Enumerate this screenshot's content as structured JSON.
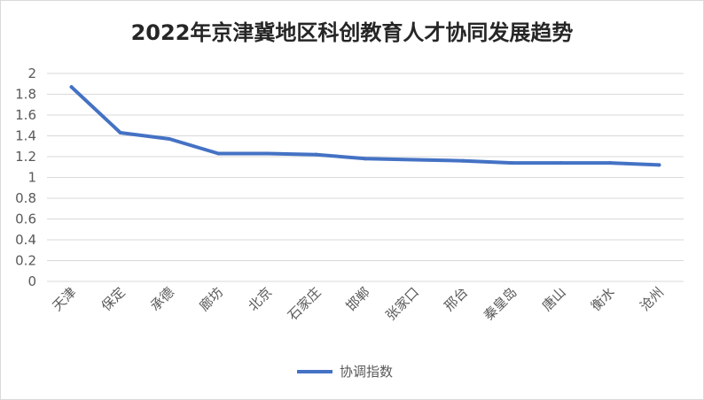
{
  "chart_data": {
    "type": "line",
    "title": "2022年京津冀地区科创教育人才协同发展趋势",
    "xlabel": "",
    "ylabel": "",
    "categories": [
      "天津",
      "保定",
      "承德",
      "廊坊",
      "北京",
      "石家庄",
      "邯郸",
      "张家口",
      "邢台",
      "秦皇岛",
      "唐山",
      "衡水",
      "沧州"
    ],
    "series": [
      {
        "name": "协调指数",
        "color": "#4472c4",
        "values": [
          1.87,
          1.43,
          1.37,
          1.23,
          1.23,
          1.22,
          1.18,
          1.17,
          1.16,
          1.14,
          1.14,
          1.14,
          1.12
        ]
      }
    ],
    "ylim": [
      0,
      2
    ],
    "yticks": [
      "2",
      "1.8",
      "1.6",
      "1.4",
      "1.2",
      "1",
      "0.8",
      "0.6",
      "0.4",
      "0.2",
      "0"
    ],
    "grid": true,
    "legend_position": "bottom"
  }
}
